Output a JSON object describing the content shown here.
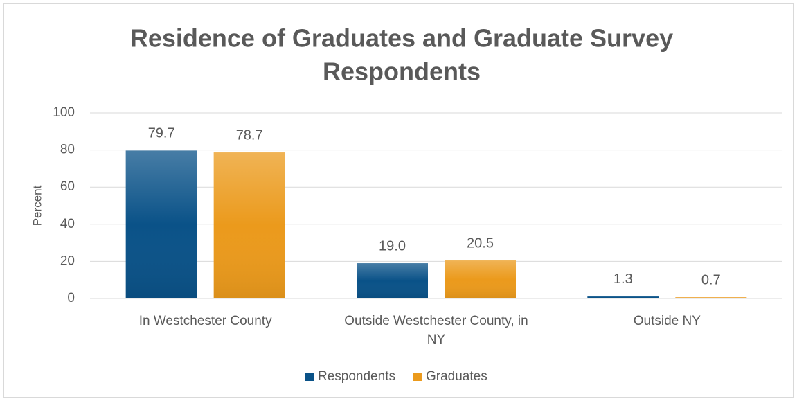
{
  "chart_data": {
    "type": "bar",
    "title": "Residence of Graduates and Graduate Survey Respondents",
    "y_label": "Percent",
    "categories": [
      "In Westchester County",
      "Outside Westchester County, in NY",
      "Outside NY"
    ],
    "series": [
      {
        "name": "Respondents",
        "color": "#0a5288",
        "values": [
          79.7,
          19.0,
          1.3
        ],
        "value_labels": [
          "79.7",
          "19.0",
          "1.3"
        ]
      },
      {
        "name": "Graduates",
        "color": "#eb9a1c",
        "values": [
          78.7,
          20.5,
          0.7
        ],
        "value_labels": [
          "78.7",
          "20.5",
          "0.7"
        ]
      }
    ],
    "ylim": [
      0,
      100
    ],
    "yticks": [
      0,
      20,
      40,
      60,
      80,
      100
    ],
    "grid": true,
    "legend": "bottom"
  }
}
